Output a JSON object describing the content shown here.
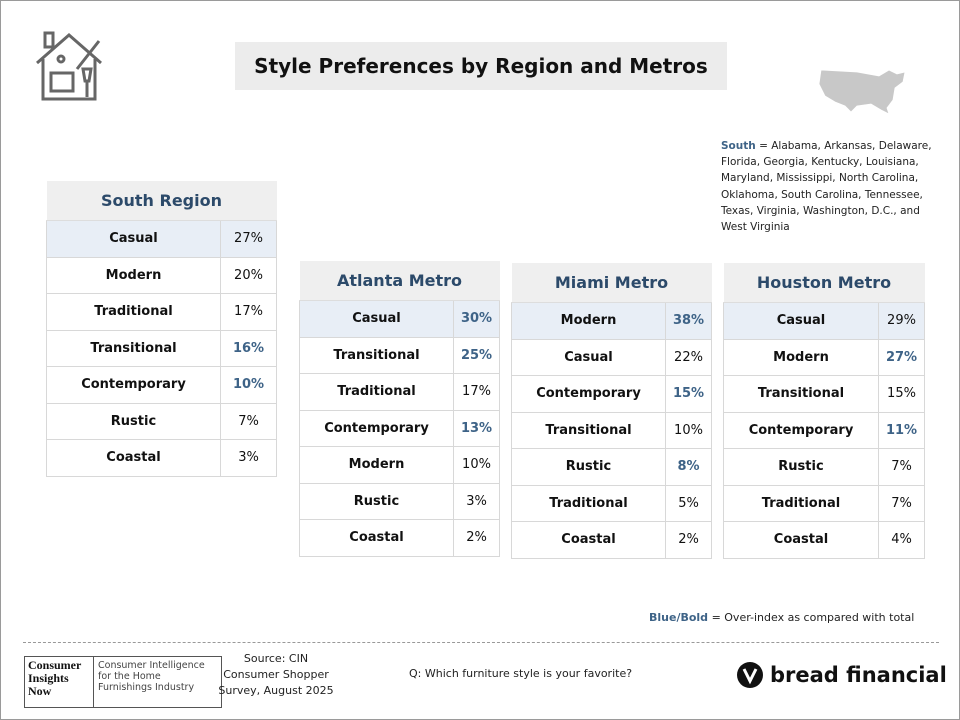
{
  "header": {
    "title": "Style Preferences by Region and Metros"
  },
  "note": {
    "term": "South",
    "text": "= Alabama, Arkansas, Delaware, Florida, Georgia, Kentucky, Louisiana, Maryland, Mississippi, North Carolina, Oklahoma, South Carolina, Tennessee, Texas, Virginia, Washington, D.C., and West Virginia"
  },
  "tables": [
    {
      "title": "South Region",
      "rows": [
        {
          "style": "Casual",
          "value": "27%",
          "over": false
        },
        {
          "style": "Modern",
          "value": "20%",
          "over": false
        },
        {
          "style": "Traditional",
          "value": "17%",
          "over": false
        },
        {
          "style": "Transitional",
          "value": "16%",
          "over": true
        },
        {
          "style": "Contemporary",
          "value": "10%",
          "over": true
        },
        {
          "style": "Rustic",
          "value": "7%",
          "over": false
        },
        {
          "style": "Coastal",
          "value": "3%",
          "over": false
        }
      ]
    },
    {
      "title": "Atlanta Metro",
      "rows": [
        {
          "style": "Casual",
          "value": "30%",
          "over": true
        },
        {
          "style": "Transitional",
          "value": "25%",
          "over": true
        },
        {
          "style": "Traditional",
          "value": "17%",
          "over": false
        },
        {
          "style": "Contemporary",
          "value": "13%",
          "over": true
        },
        {
          "style": "Modern",
          "value": "10%",
          "over": false
        },
        {
          "style": "Rustic",
          "value": "3%",
          "over": false
        },
        {
          "style": "Coastal",
          "value": "2%",
          "over": false
        }
      ]
    },
    {
      "title": "Miami Metro",
      "rows": [
        {
          "style": "Modern",
          "value": "38%",
          "over": true
        },
        {
          "style": "Casual",
          "value": "22%",
          "over": false
        },
        {
          "style": "Contemporary",
          "value": "15%",
          "over": true
        },
        {
          "style": "Transitional",
          "value": "10%",
          "over": false
        },
        {
          "style": "Rustic",
          "value": "8%",
          "over": true
        },
        {
          "style": "Traditional",
          "value": "5%",
          "over": false
        },
        {
          "style": "Coastal",
          "value": "2%",
          "over": false
        }
      ]
    },
    {
      "title": "Houston Metro",
      "rows": [
        {
          "style": "Casual",
          "value": "29%",
          "over": false
        },
        {
          "style": "Modern",
          "value": "27%",
          "over": true
        },
        {
          "style": "Transitional",
          "value": "15%",
          "over": false
        },
        {
          "style": "Contemporary",
          "value": "11%",
          "over": true
        },
        {
          "style": "Rustic",
          "value": "7%",
          "over": false
        },
        {
          "style": "Traditional",
          "value": "7%",
          "over": false
        },
        {
          "style": "Coastal",
          "value": "4%",
          "over": false
        }
      ]
    }
  ],
  "legend": {
    "term": "Blue/Bold",
    "text": "= Over-index as compared with total"
  },
  "footer": {
    "cin_logo": {
      "name": "Consumer Insights Now",
      "tagline": "Consumer Intelligence for the Home Furnishings Industry"
    },
    "source": [
      "Source: CIN",
      "Consumer Shopper",
      "Survey, August 2025"
    ],
    "question": "Q: Which furniture style is your favorite?",
    "brand": "bread financial"
  }
}
